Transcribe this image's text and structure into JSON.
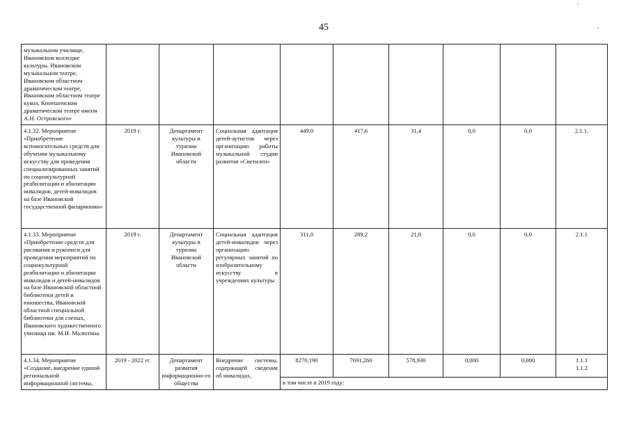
{
  "page_number": "45",
  "rows": [
    {
      "name": "музыкальном училище, Ивановском колледже культуры, Ивановском музыкальном театре, Ивановском областном драматическом театре, Ивановском областном театре кукол, Кинешемском драматическом театре имени А.Н. Островского»",
      "period": "",
      "executor": "",
      "result": "",
      "total": "",
      "regional": "",
      "federal": "",
      "c4": "",
      "c5": "",
      "indicator": ""
    },
    {
      "name": "4.1.32. Мероприятие «Приобретение вспомогательных средств для обучения музыкальному искусству для проведения специализированных занятий по социокультурной реабилитации и абилитации инвалидов, детей-инвалидов на базе Ивановской государственной филармонии»",
      "period": "2019 г.",
      "executor": "Департамент культуры и туризма Ивановской области",
      "result": "Социальная адаптация детей-аутистов через организацию работы музыкальной студии развития «Светилен»",
      "total": "449,0",
      "regional": "417,6",
      "federal": "31,4",
      "c4": "0,0",
      "c5": "0,0",
      "indicator": "2.1.1."
    },
    {
      "name": "4.1.33. Мероприятие «Приобретение средств для рисования и рукописи для проведения мероприятий по социокультурной реабилитации и абилитации инвалидов и детей-инвалидов на базе Ивановской областной библиотеки детей и юношества, Ивановской областной специальной библиотеки для слепых, Ивановского художественного училища им. М.И. Малютина",
      "period": "2019 г.",
      "executor": "Департамент культуры и туризма Ивановской области",
      "result": "Социальная адаптация детей-инвалидов через организацию регулярных занятий по изобразительному искусству в учреждениях культуры",
      "total": "311,0",
      "regional": "289,2",
      "federal": "21,8",
      "c4": "0,0",
      "c5": "0,0",
      "indicator": "2.1.1"
    },
    {
      "name": "4.1.34. Мероприятие «Создание, внедрение единой региональной информационной системы,",
      "period": "2019 - 2022 гг.",
      "executor": "Департамент развития информационно-го общества",
      "result": "Внедрение системы, содержащей сведения об инвалидах,",
      "total": "8270,190",
      "regional": "7691,260",
      "federal": "578,930",
      "c4": "0,000",
      "c5": "0,000",
      "indicator": "1.1.1 1.1.2",
      "subnote": "в том числе в 2019 году:"
    }
  ]
}
